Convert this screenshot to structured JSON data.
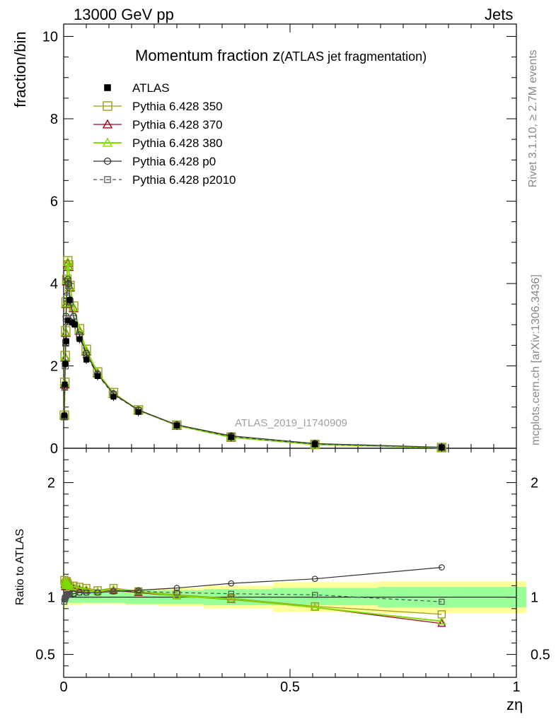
{
  "header": {
    "left": "13000 GeV pp",
    "right": "Jets"
  },
  "side_labels": {
    "rivet": "Rivet 3.1.10, ≥ 2.7M events",
    "mcplots": "mcplots.cern.ch [arXiv:1306.3436]"
  },
  "chart_data": {
    "type": "line",
    "title_main": "Momentum fraction ",
    "title_z": "z",
    "title_sub": "(ATLAS jet fragmentation)",
    "watermark": "ATLAS_2019_I1740909",
    "xlabel": "zη",
    "ylabel": "fraction/bin",
    "ratio_ylabel": "Ratio to ATLAS",
    "xlim": [
      0,
      1
    ],
    "ylim": [
      0,
      10.3
    ],
    "ratio_ylim": [
      0.3,
      2.3
    ],
    "xticks": [
      {
        "v": 0,
        "label": "0"
      },
      {
        "v": 0.5,
        "label": "0.5"
      },
      {
        "v": 1,
        "label": "1"
      }
    ],
    "yticks": [
      {
        "v": 0,
        "label": "0"
      },
      {
        "v": 2,
        "label": "2"
      },
      {
        "v": 4,
        "label": "4"
      },
      {
        "v": 6,
        "label": "6"
      },
      {
        "v": 8,
        "label": "8"
      },
      {
        "v": 10,
        "label": "10"
      }
    ],
    "ratio_yticks": [
      {
        "v": 0.5,
        "label": "0.5"
      },
      {
        "v": 1,
        "label": "1"
      },
      {
        "v": 2,
        "label": "2"
      }
    ],
    "x": [
      0.0015,
      0.0025,
      0.004,
      0.006,
      0.009,
      0.013,
      0.018,
      0.025,
      0.035,
      0.05,
      0.075,
      0.11,
      0.165,
      0.25,
      0.37,
      0.555,
      0.835
    ],
    "data": {
      "name": "ATLAS",
      "values": [
        0.8,
        1.55,
        2.05,
        2.6,
        3.1,
        3.6,
        3.05,
        3.0,
        2.65,
        2.15,
        1.75,
        1.25,
        0.88,
        0.55,
        0.27,
        0.1,
        0.02
      ]
    },
    "band_inner": [
      0.93,
      0.94,
      0.95,
      0.95,
      0.95,
      0.95,
      0.95,
      0.95,
      0.95,
      0.95,
      0.95,
      0.95,
      0.94,
      0.94,
      0.93,
      0.93,
      0.91
    ],
    "band_inner_hi": [
      1.07,
      1.06,
      1.05,
      1.05,
      1.05,
      1.05,
      1.05,
      1.05,
      1.05,
      1.05,
      1.05,
      1.05,
      1.06,
      1.06,
      1.07,
      1.08,
      1.09
    ],
    "band_outer_lo": [
      0.88,
      0.89,
      0.9,
      0.91,
      0.92,
      0.93,
      0.93,
      0.93,
      0.93,
      0.94,
      0.94,
      0.94,
      0.93,
      0.92,
      0.9,
      0.87,
      0.86
    ],
    "band_outer_hi": [
      1.12,
      1.11,
      1.1,
      1.09,
      1.08,
      1.07,
      1.07,
      1.07,
      1.07,
      1.06,
      1.06,
      1.06,
      1.07,
      1.08,
      1.1,
      1.13,
      1.14
    ],
    "series": [
      {
        "name": "Pythia 6.428 350",
        "color": "#9a9a1e",
        "marker": "square",
        "values": [
          0.8,
          1.6,
          2.25,
          2.85,
          3.55,
          4.1,
          4.55,
          4.45,
          3.95,
          3.45,
          2.9,
          2.4,
          1.85,
          1.35,
          0.93,
          0.56,
          0.27,
          0.092,
          0.017
        ],
        "x": [
          0.0015,
          0.0025,
          0.0035,
          0.0045,
          0.0055,
          0.007,
          0.009,
          0.011,
          0.014,
          0.022,
          0.035,
          0.05,
          0.075,
          0.11,
          0.165,
          0.25,
          0.37,
          0.555,
          0.835
        ],
        "ratio": [
          1.15,
          1.12,
          1.1,
          1.12,
          1.13,
          1.14,
          1.12,
          1.1,
          1.1,
          1.1,
          1.09,
          1.08,
          1.06,
          1.08,
          1.05,
          1.02,
          0.99,
          0.92,
          0.85
        ]
      },
      {
        "name": "Pythia 6.428 370",
        "color": "#a0001e",
        "marker": "triangle",
        "values": [
          0.8,
          1.55,
          2.2,
          2.8,
          3.5,
          4.05,
          4.5,
          4.4,
          3.9,
          3.4,
          2.85,
          2.35,
          1.82,
          1.32,
          0.92,
          0.55,
          0.265,
          0.09,
          0.016
        ],
        "x": [
          0.0015,
          0.0025,
          0.0035,
          0.0045,
          0.0055,
          0.007,
          0.009,
          0.011,
          0.014,
          0.022,
          0.035,
          0.05,
          0.075,
          0.11,
          0.165,
          0.25,
          0.37,
          0.555,
          0.835
        ],
        "ratio": [
          1.14,
          1.11,
          1.09,
          1.11,
          1.12,
          1.12,
          1.11,
          1.09,
          1.09,
          1.08,
          1.07,
          1.06,
          1.05,
          1.06,
          1.04,
          1.01,
          0.98,
          0.91,
          0.77
        ]
      },
      {
        "name": "Pythia 6.428 380",
        "color": "#7fdc00",
        "marker": "triangle",
        "values": [
          0.8,
          1.58,
          2.22,
          2.82,
          3.52,
          4.08,
          4.52,
          4.42,
          3.92,
          3.42,
          2.87,
          2.37,
          1.84,
          1.33,
          0.93,
          0.555,
          0.268,
          0.091,
          0.016
        ],
        "x": [
          0.0015,
          0.0025,
          0.0035,
          0.0045,
          0.0055,
          0.007,
          0.009,
          0.011,
          0.014,
          0.022,
          0.035,
          0.05,
          0.075,
          0.11,
          0.165,
          0.25,
          0.37,
          0.555,
          0.835
        ],
        "ratio": [
          1.14,
          1.12,
          1.1,
          1.11,
          1.12,
          1.13,
          1.11,
          1.1,
          1.09,
          1.09,
          1.08,
          1.07,
          1.05,
          1.07,
          1.05,
          1.01,
          0.985,
          0.91,
          0.79
        ]
      },
      {
        "name": "Pythia 6.428 p0",
        "color": "#303030",
        "marker": "circle",
        "values": [
          0.78,
          1.5,
          2.05,
          2.6,
          3.2,
          3.7,
          4.1,
          4.0,
          3.6,
          3.2,
          2.75,
          2.3,
          1.8,
          1.32,
          0.93,
          0.57,
          0.3,
          0.115,
          0.025
        ],
        "x": [
          0.0015,
          0.0025,
          0.0035,
          0.0045,
          0.0055,
          0.007,
          0.009,
          0.011,
          0.014,
          0.022,
          0.035,
          0.05,
          0.075,
          0.11,
          0.165,
          0.25,
          0.37,
          0.555,
          0.835
        ],
        "ratio": [
          0.98,
          1.0,
          1.0,
          1.01,
          1.02,
          1.03,
          1.03,
          1.02,
          1.03,
          1.03,
          1.04,
          1.04,
          1.04,
          1.05,
          1.06,
          1.08,
          1.12,
          1.16,
          1.26
        ]
      },
      {
        "name": "Pythia 6.428 p2010",
        "color": "#505050",
        "marker": "square-small",
        "dashed": true,
        "values": [
          0.76,
          1.48,
          2.0,
          2.55,
          3.15,
          3.65,
          4.05,
          3.95,
          3.55,
          3.15,
          2.7,
          2.25,
          1.78,
          1.3,
          0.92,
          0.56,
          0.28,
          0.1,
          0.019
        ],
        "x": [
          0.0015,
          0.0025,
          0.0035,
          0.0045,
          0.0055,
          0.007,
          0.009,
          0.011,
          0.014,
          0.022,
          0.035,
          0.05,
          0.075,
          0.11,
          0.165,
          0.25,
          0.37,
          0.555,
          0.835
        ],
        "ratio": [
          0.96,
          0.98,
          0.99,
          1.0,
          1.01,
          1.02,
          1.03,
          1.02,
          1.03,
          1.03,
          1.04,
          1.04,
          1.04,
          1.05,
          1.05,
          1.04,
          1.03,
          1.02,
          0.96
        ]
      }
    ],
    "grid": false,
    "legend_position": "top-left"
  }
}
